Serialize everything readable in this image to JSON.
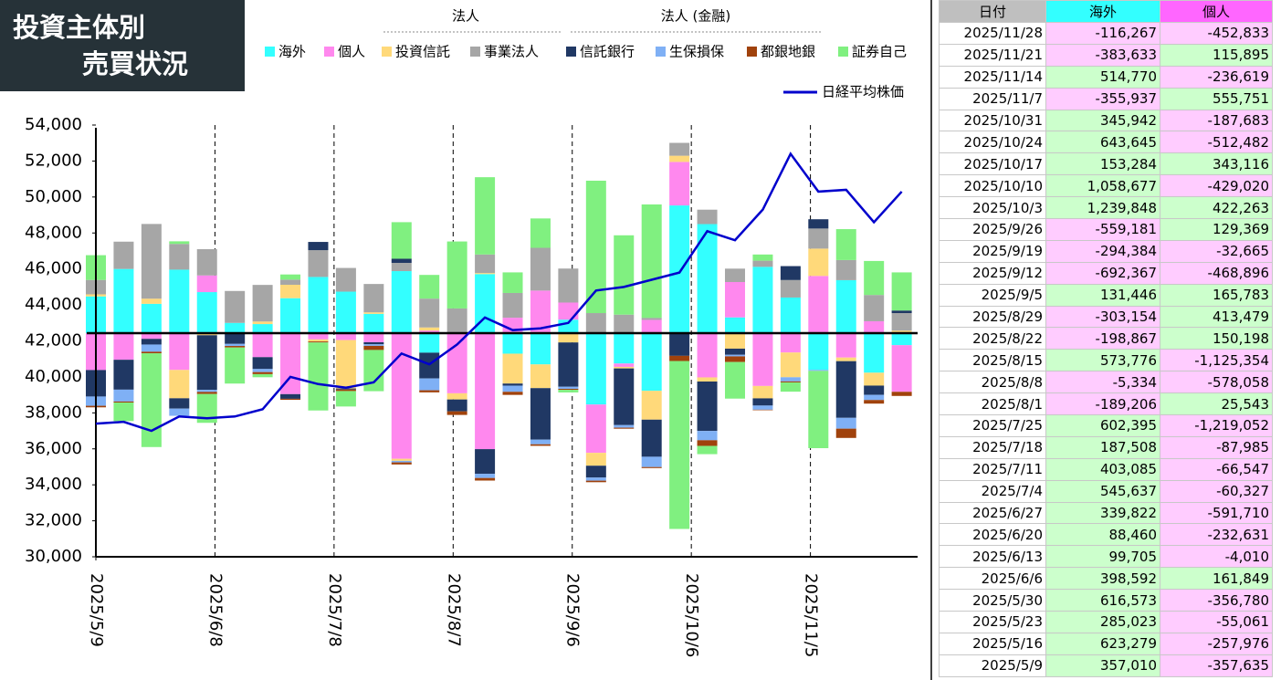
{
  "chart_data": {
    "type": "bar",
    "title": [
      "投資主体別",
      "売買状況"
    ],
    "legend_groups": [
      "法人",
      "法人 (金融)"
    ],
    "x": [
      "2025/5/9",
      "2025/5/16",
      "2025/5/23",
      "2025/5/30",
      "2025/6/6",
      "2025/6/13",
      "2025/6/20",
      "2025/6/27",
      "2025/7/4",
      "2025/7/11",
      "2025/7/18",
      "2025/7/25",
      "2025/8/1",
      "2025/8/8",
      "2025/8/15",
      "2025/8/22",
      "2025/8/29",
      "2025/9/5",
      "2025/9/12",
      "2025/9/19",
      "2025/9/26",
      "2025/10/3",
      "2025/10/10",
      "2025/10/17",
      "2025/10/24",
      "2025/10/31",
      "2025/11/7",
      "2025/11/14",
      "2025/11/21",
      "2025/11/28"
    ],
    "xlim": [
      "2025/5/9",
      "2025/12/2"
    ],
    "xticks": [
      "2025/5/9",
      "2025/6/8",
      "2025/7/8",
      "2025/8/7",
      "2025/9/6",
      "2025/10/6",
      "2025/11/5"
    ],
    "ylim": [
      30000,
      54000
    ],
    "yticks": [
      {
        "value": 30000,
        "label": "30,000"
      },
      {
        "value": 32000,
        "label": "32,000"
      },
      {
        "value": 34000,
        "label": "34,000"
      },
      {
        "value": 36000,
        "label": "36,000"
      },
      {
        "value": 38000,
        "label": "38,000"
      },
      {
        "value": 40000,
        "label": "40,000"
      },
      {
        "value": 42000,
        "label": "42,000"
      },
      {
        "value": 44000,
        "label": "44,000"
      },
      {
        "value": 46000,
        "label": "46,000"
      },
      {
        "value": 48000,
        "label": "48,000"
      },
      {
        "value": 50000,
        "label": "50,000"
      },
      {
        "value": 52000,
        "label": "52,000"
      },
      {
        "value": 54000,
        "label": "54,000"
      }
    ],
    "y2lim": [
      -2170000,
      2020000
    ],
    "series": [
      {
        "name": "海外",
        "color": "#33ffff",
        "axis": "y2",
        "values": [
          357010,
          623279,
          285023,
          616573,
          398592,
          99705,
          88460,
          339822,
          545637,
          403085,
          187508,
          602395,
          -189206,
          -5334,
          573776,
          -198867,
          -303154,
          131446,
          -692367,
          -294384,
          -559181,
          1239848,
          1058677,
          153284,
          643645,
          345942,
          -355937,
          514770,
          -383633,
          -116267
        ]
      },
      {
        "name": "個人",
        "color": "#ff88ee",
        "axis": "y2",
        "values": [
          -357635,
          -257976,
          -55061,
          -356780,
          161849,
          -4010,
          -232631,
          -591710,
          -60327,
          -66547,
          -87985,
          -1219052,
          25543,
          -578058,
          -1125354,
          150198,
          413479,
          165783,
          -468896,
          -32665,
          129369,
          422263,
          -429020,
          343116,
          -512482,
          -187683,
          555751,
          -236619,
          115895,
          -452833
        ]
      },
      {
        "name": "投資信託",
        "color": "#ffd97a",
        "axis": "y2",
        "values": [
          20000,
          0,
          50000,
          -275000,
          -20000,
          0,
          25000,
          130000,
          -20000,
          -470000,
          15000,
          -20000,
          30000,
          -60000,
          10000,
          -290000,
          -230000,
          -90000,
          -125000,
          -15000,
          -280000,
          60000,
          -40000,
          -150000,
          -120000,
          -240000,
          265000,
          -35000,
          -125000,
          25000
        ]
      },
      {
        "name": "事業法人",
        "color": "#a6a6a6",
        "axis": "y2",
        "values": [
          140000,
          265000,
          725000,
          250000,
          255000,
          310000,
          355000,
          50000,
          260000,
          230000,
          275000,
          80000,
          280000,
          240000,
          180000,
          240000,
          415000,
          330000,
          195000,
          180000,
          20000,
          125000,
          140000,
          130000,
          60000,
          170000,
          195000,
          195000,
          255000,
          170000
        ]
      },
      {
        "name": "信託銀行",
        "color": "#203864",
        "axis": "y2",
        "values": [
          -257000,
          -290000,
          -55000,
          -100000,
          -530000,
          -100000,
          -115000,
          -45000,
          80000,
          -10000,
          -20000,
          40000,
          -250000,
          -115000,
          -240000,
          -20000,
          -500000,
          -430000,
          -115000,
          -550000,
          -360000,
          -220000,
          -480000,
          -60000,
          -70000,
          135000,
          90000,
          -550000,
          -90000,
          25000
        ]
      },
      {
        "name": "生保損保",
        "color": "#7fb0f5",
        "axis": "y2",
        "values": [
          -90000,
          -115000,
          -70000,
          -70000,
          -20000,
          -20000,
          -30000,
          0,
          0,
          0,
          -15000,
          -15000,
          -115000,
          0,
          -40000,
          -60000,
          -45000,
          -20000,
          -30000,
          -25000,
          -100000,
          0,
          -90000,
          -15000,
          -40000,
          -40000,
          -10000,
          -105000,
          -50000,
          0
        ]
      },
      {
        "name": "都銀地銀",
        "color": "#a0420c",
        "axis": "y2",
        "values": [
          -15000,
          -10000,
          -15000,
          0,
          -20000,
          -15000,
          -20000,
          -10000,
          -10000,
          -15000,
          -40000,
          -20000,
          -20000,
          -35000,
          -25000,
          -30000,
          -15000,
          -10000,
          -15000,
          -10000,
          -10000,
          -50000,
          -55000,
          -55000,
          -5000,
          -10000,
          0,
          -90000,
          -35000,
          -40000
        ]
      },
      {
        "name": "証券自己",
        "color": "#80f080",
        "axis": "y2",
        "values": [
          240000,
          -180000,
          -910000,
          25000,
          -280000,
          -350000,
          -30000,
          50000,
          -660000,
          -150000,
          -400000,
          355000,
          230000,
          650000,
          750000,
          200000,
          285000,
          -25000,
          1285000,
          770000,
          1100000,
          -1630000,
          -80000,
          -355000,
          60000,
          -90000,
          -750000,
          300000,
          330000,
          370000
        ]
      },
      {
        "name": "日経平均株価",
        "color": "#0000cc",
        "type": "line",
        "values": [
          37400,
          37500,
          37000,
          37800,
          37700,
          37800,
          38200,
          40000,
          39600,
          39400,
          39700,
          41300,
          40700,
          41800,
          43300,
          42600,
          42700,
          43000,
          44800,
          45000,
          45400,
          45800,
          48100,
          47600,
          49300,
          52400,
          50300,
          50400,
          48600,
          50300
        ]
      }
    ]
  },
  "table": {
    "header": [
      "日付",
      "海外",
      "個人"
    ],
    "header_colors": [
      "#bfbfbf",
      "#33ffff",
      "#ff66ff"
    ],
    "rows": [
      [
        "2025/11/28",
        "-116,267",
        "-452,833"
      ],
      [
        "2025/11/21",
        "-383,633",
        "115,895"
      ],
      [
        "2025/11/14",
        "514,770",
        "-236,619"
      ],
      [
        "2025/11/7",
        "-355,937",
        "555,751"
      ],
      [
        "2025/10/31",
        "345,942",
        "-187,683"
      ],
      [
        "2025/10/24",
        "643,645",
        "-512,482"
      ],
      [
        "2025/10/17",
        "153,284",
        "343,116"
      ],
      [
        "2025/10/10",
        "1,058,677",
        "-429,020"
      ],
      [
        "2025/10/3",
        "1,239,848",
        "422,263"
      ],
      [
        "2025/9/26",
        "-559,181",
        "129,369"
      ],
      [
        "2025/9/19",
        "-294,384",
        "-32,665"
      ],
      [
        "2025/9/12",
        "-692,367",
        "-468,896"
      ],
      [
        "2025/9/5",
        "131,446",
        "165,783"
      ],
      [
        "2025/8/29",
        "-303,154",
        "413,479"
      ],
      [
        "2025/8/22",
        "-198,867",
        "150,198"
      ],
      [
        "2025/8/15",
        "573,776",
        "-1,125,354"
      ],
      [
        "2025/8/8",
        "-5,334",
        "-578,058"
      ],
      [
        "2025/8/1",
        "-189,206",
        "25,543"
      ],
      [
        "2025/7/25",
        "602,395",
        "-1,219,052"
      ],
      [
        "2025/7/18",
        "187,508",
        "-87,985"
      ],
      [
        "2025/7/11",
        "403,085",
        "-66,547"
      ],
      [
        "2025/7/4",
        "545,637",
        "-60,327"
      ],
      [
        "2025/6/27",
        "339,822",
        "-591,710"
      ],
      [
        "2025/6/20",
        "88,460",
        "-232,631"
      ],
      [
        "2025/6/13",
        "99,705",
        "-4,010"
      ],
      [
        "2025/6/6",
        "398,592",
        "161,849"
      ],
      [
        "2025/5/30",
        "616,573",
        "-356,780"
      ],
      [
        "2025/5/23",
        "285,023",
        "-55,061"
      ],
      [
        "2025/5/16",
        "623,279",
        "-257,976"
      ],
      [
        "2025/5/9",
        "357,010",
        "-357,635"
      ]
    ]
  }
}
